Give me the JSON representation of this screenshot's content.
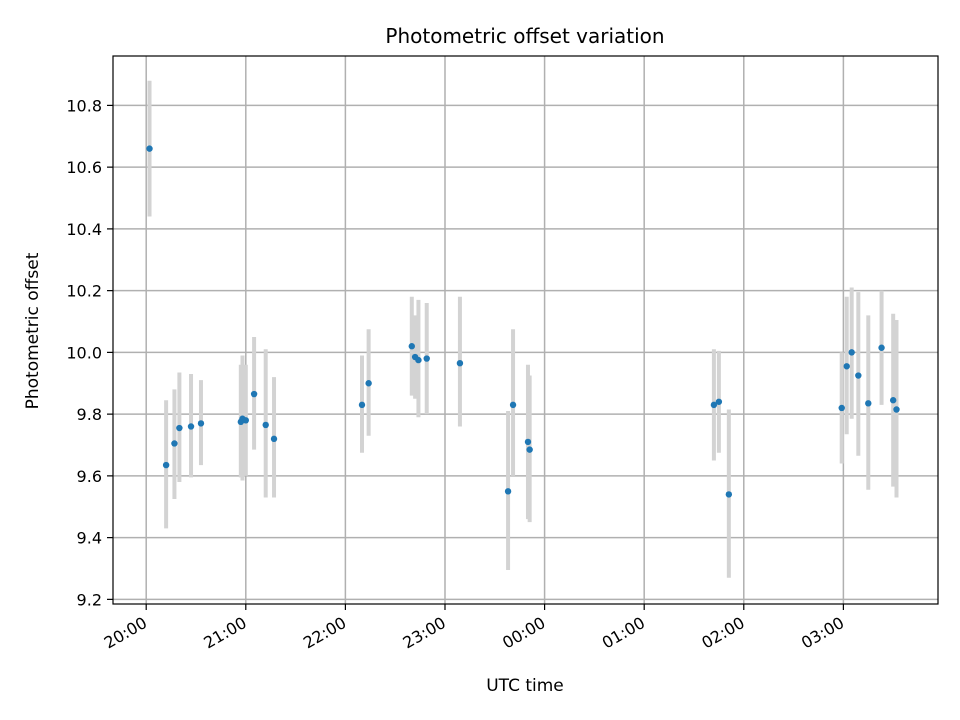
{
  "chart_data": {
    "type": "scatter",
    "title": "Photometric offset variation",
    "xlabel": "UTC time",
    "ylabel": "Photometric offset",
    "x_unit": "time of day (UTC), crossing midnight",
    "xlim": [
      "19:40",
      "03:57"
    ],
    "ylim": [
      9.185,
      10.96
    ],
    "x_ticks": [
      "20:00",
      "21:00",
      "22:00",
      "23:00",
      "00:00",
      "01:00",
      "02:00",
      "03:00"
    ],
    "y_ticks": [
      "9.2",
      "9.4",
      "9.6",
      "9.8",
      "10.0",
      "10.2",
      "10.4",
      "10.6",
      "10.8"
    ],
    "grid": true,
    "point_color": "#1f77b4",
    "errorbar_color": "#d3d3d3",
    "series": [
      {
        "points": [
          {
            "x": "20:02",
            "y": 10.66,
            "ylo": 10.44,
            "yhi": 10.88
          },
          {
            "x": "20:12",
            "y": 9.635,
            "ylo": 9.43,
            "yhi": 9.845
          },
          {
            "x": "20:17",
            "y": 9.705,
            "ylo": 9.525,
            "yhi": 9.88
          },
          {
            "x": "20:20",
            "y": 9.755,
            "ylo": 9.58,
            "yhi": 9.935
          },
          {
            "x": "20:27",
            "y": 9.76,
            "ylo": 9.595,
            "yhi": 9.93
          },
          {
            "x": "20:33",
            "y": 9.77,
            "ylo": 9.635,
            "yhi": 9.91
          },
          {
            "x": "20:57",
            "y": 9.775,
            "ylo": 9.595,
            "yhi": 9.96
          },
          {
            "x": "20:58",
            "y": 9.785,
            "ylo": 9.585,
            "yhi": 9.99
          },
          {
            "x": "21:00",
            "y": 9.78,
            "ylo": 9.6,
            "yhi": 9.96
          },
          {
            "x": "21:05",
            "y": 9.865,
            "ylo": 9.685,
            "yhi": 10.05
          },
          {
            "x": "21:12",
            "y": 9.765,
            "ylo": 9.53,
            "yhi": 10.01
          },
          {
            "x": "21:17",
            "y": 9.72,
            "ylo": 9.53,
            "yhi": 9.92
          },
          {
            "x": "22:10",
            "y": 9.83,
            "ylo": 9.675,
            "yhi": 9.99
          },
          {
            "x": "22:14",
            "y": 9.9,
            "ylo": 9.73,
            "yhi": 10.075
          },
          {
            "x": "22:40",
            "y": 10.02,
            "ylo": 9.86,
            "yhi": 10.18
          },
          {
            "x": "22:42",
            "y": 9.985,
            "ylo": 9.85,
            "yhi": 10.12
          },
          {
            "x": "22:44",
            "y": 9.975,
            "ylo": 9.79,
            "yhi": 10.17
          },
          {
            "x": "22:49",
            "y": 9.98,
            "ylo": 9.8,
            "yhi": 10.16
          },
          {
            "x": "23:09",
            "y": 9.965,
            "ylo": 9.76,
            "yhi": 10.18
          },
          {
            "x": "23:38",
            "y": 9.55,
            "ylo": 9.295,
            "yhi": 9.81
          },
          {
            "x": "23:41",
            "y": 9.83,
            "ylo": 9.6,
            "yhi": 10.075
          },
          {
            "x": "23:50",
            "y": 9.71,
            "ylo": 9.46,
            "yhi": 9.96
          },
          {
            "x": "23:51",
            "y": 9.685,
            "ylo": 9.45,
            "yhi": 9.925
          },
          {
            "x": "01:42",
            "y": 9.83,
            "ylo": 9.65,
            "yhi": 10.01
          },
          {
            "x": "01:45",
            "y": 9.84,
            "ylo": 9.675,
            "yhi": 10.005
          },
          {
            "x": "01:51",
            "y": 9.54,
            "ylo": 9.27,
            "yhi": 9.815
          },
          {
            "x": "02:59",
            "y": 9.82,
            "ylo": 9.64,
            "yhi": 10.0
          },
          {
            "x": "03:02",
            "y": 9.955,
            "ylo": 9.735,
            "yhi": 10.18
          },
          {
            "x": "03:05",
            "y": 10.0,
            "ylo": 9.785,
            "yhi": 10.21
          },
          {
            "x": "03:09",
            "y": 9.925,
            "ylo": 9.665,
            "yhi": 10.195
          },
          {
            "x": "03:15",
            "y": 9.835,
            "ylo": 9.555,
            "yhi": 10.12
          },
          {
            "x": "03:23",
            "y": 10.015,
            "ylo": 9.83,
            "yhi": 10.2
          },
          {
            "x": "03:30",
            "y": 9.845,
            "ylo": 9.565,
            "yhi": 10.125
          },
          {
            "x": "03:32",
            "y": 9.815,
            "ylo": 9.53,
            "yhi": 10.105
          }
        ]
      }
    ]
  }
}
